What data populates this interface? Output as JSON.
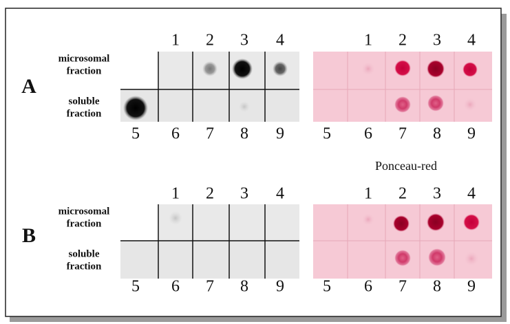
{
  "panels": [
    {
      "letter": "A",
      "rows": [
        {
          "label": [
            "microsomal",
            "fraction"
          ]
        },
        {
          "label": [
            "soluble",
            "fraction"
          ]
        }
      ],
      "left_top_lanes": [
        "1",
        "2",
        "3",
        "4"
      ],
      "left_bottom_lanes": [
        "5",
        "6",
        "7",
        "8",
        "9"
      ],
      "right_top_lanes": [
        "1",
        "2",
        "3",
        "4"
      ],
      "right_bottom_lanes": [
        "5",
        "6",
        "7",
        "8",
        "9"
      ]
    },
    {
      "letter": "B",
      "rows": [
        {
          "label": [
            "microsomal",
            "fraction"
          ]
        },
        {
          "label": [
            "soluble",
            "fraction"
          ]
        }
      ],
      "left_top_lanes": [
        "1",
        "2",
        "3",
        "4"
      ],
      "left_bottom_lanes": [
        "5",
        "6",
        "7",
        "8",
        "9"
      ],
      "right_top_lanes": [
        "1",
        "2",
        "3",
        "4"
      ],
      "right_bottom_lanes": [
        "5",
        "6",
        "7",
        "8",
        "9"
      ]
    }
  ],
  "stain_label": "Ponceau-red"
}
